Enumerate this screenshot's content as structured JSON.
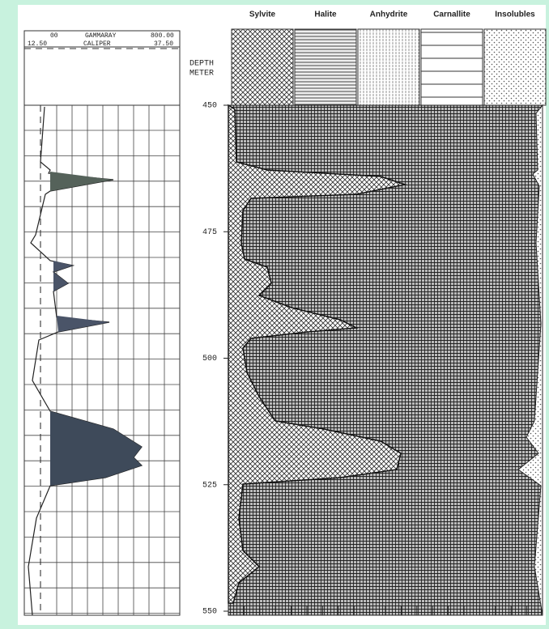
{
  "headers": [
    "Sylvite",
    "Halite",
    "Anhydrite",
    "Carnallite",
    "Insolubles"
  ],
  "depth_label": [
    "DEPTH",
    "METER"
  ],
  "depth_ticks": [
    450,
    475,
    500,
    525,
    550
  ],
  "log_header": {
    "gamma": [
      "00",
      "GAMMARAY",
      "800.00"
    ],
    "caliper": [
      "12.50",
      "CALIPER",
      "37.50"
    ]
  }
}
